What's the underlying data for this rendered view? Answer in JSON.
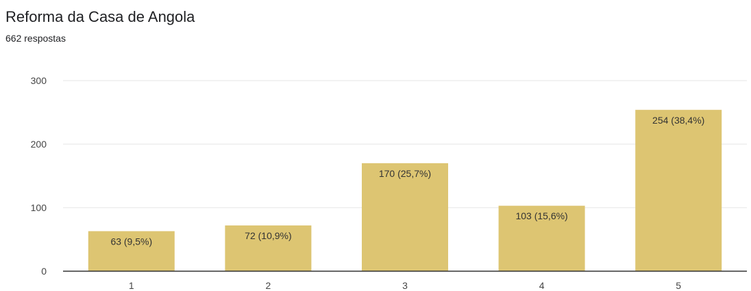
{
  "header": {
    "title": "Reforma da Casa de Angola",
    "subtitle": "662 respostas"
  },
  "colors": {
    "bar": "#ddc572",
    "grid": "#e6e6e6",
    "baseline": "#333333"
  },
  "chart_data": {
    "type": "bar",
    "title": "Reforma da Casa de Angola",
    "subtitle": "662 respostas",
    "categories": [
      "1",
      "2",
      "3",
      "4",
      "5"
    ],
    "values": [
      63,
      72,
      170,
      103,
      254
    ],
    "data_labels": [
      "63 (9,5%)",
      "72 (10,9%)",
      "170 (25,7%)",
      "103 (15,6%)",
      "254 (38,4%)"
    ],
    "ylim": [
      0,
      300
    ],
    "yticks": [
      "0",
      "100",
      "200",
      "300"
    ],
    "grid": true,
    "legend": "none"
  }
}
